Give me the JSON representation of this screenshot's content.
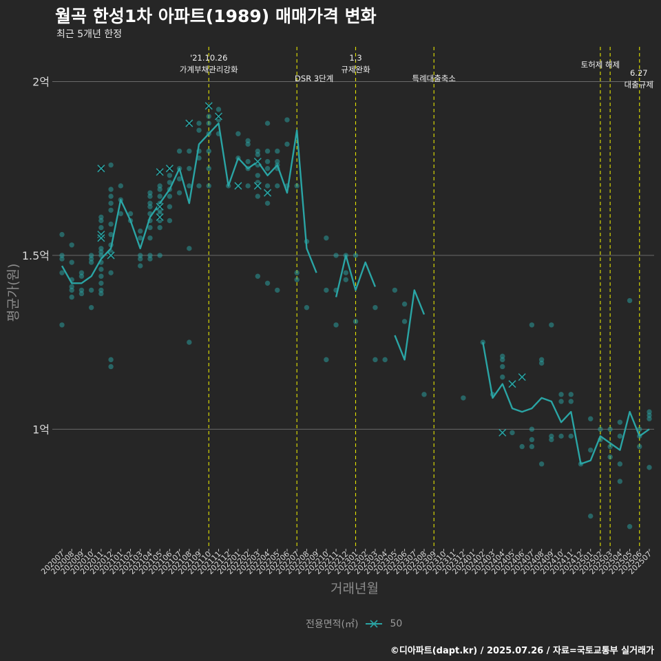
{
  "header": {
    "title": "월곡 한성1차 아파트(1989) 매매가격 변화",
    "subtitle": "최근 5개년 한정"
  },
  "caption": "©디아파트(dapt.kr) / 2025.07.26 / 자료=국토교통부 실거래가",
  "legend": {
    "title": "전용면적(㎡)",
    "item": "50"
  },
  "colors": {
    "background": "#262626",
    "series": "#2aa5a5",
    "event_line": "#e6e600",
    "grid": "#6a6a6a"
  },
  "chart_data": {
    "type": "line",
    "xlabel": "거래년월",
    "ylabel": "평균가(원)",
    "ylim": [
      0.66,
      2.1
    ],
    "yticks": [
      {
        "value": 1.0,
        "label": "1억"
      },
      {
        "value": 1.5,
        "label": "1.5억"
      },
      {
        "value": 2.0,
        "label": "2억"
      }
    ],
    "categories": [
      "202007",
      "202008",
      "202009",
      "202010",
      "202011",
      "202012",
      "202101",
      "202102",
      "202103",
      "202104",
      "202105",
      "202106",
      "202107",
      "202108",
      "202109",
      "202110",
      "202111",
      "202112",
      "202201",
      "202202",
      "202203",
      "202204",
      "202205",
      "202206",
      "202207",
      "202208",
      "202209",
      "202210",
      "202211",
      "202212",
      "202301",
      "202302",
      "202303",
      "202304",
      "202305",
      "202306",
      "202307",
      "202308",
      "202309",
      "202310",
      "202311",
      "202312",
      "202401",
      "202402",
      "202403",
      "202404",
      "202405",
      "202406",
      "202407",
      "202408",
      "202409",
      "202410",
      "202411",
      "202412",
      "202501",
      "202502",
      "202503",
      "202504",
      "202505",
      "202506",
      "202507"
    ],
    "series": [
      {
        "name": "50",
        "mean": [
          1.47,
          1.42,
          1.42,
          1.44,
          1.49,
          1.52,
          1.66,
          1.6,
          1.52,
          1.61,
          1.65,
          1.69,
          1.75,
          1.65,
          1.82,
          1.85,
          1.88,
          1.7,
          1.78,
          1.75,
          1.77,
          1.73,
          1.76,
          1.68,
          1.86,
          1.52,
          1.45,
          null,
          1.38,
          1.5,
          1.4,
          1.48,
          1.41,
          null,
          1.27,
          1.2,
          1.4,
          1.33,
          null,
          null,
          null,
          null,
          null,
          1.25,
          1.09,
          1.13,
          1.06,
          1.05,
          1.06,
          1.09,
          1.08,
          1.02,
          1.05,
          0.9,
          0.91,
          0.98,
          0.96,
          0.94,
          1.05,
          0.98,
          1.0
        ],
        "points": [
          [
            0,
            1.56
          ],
          [
            0,
            1.5
          ],
          [
            0,
            1.49
          ],
          [
            0,
            1.45
          ],
          [
            0,
            1.3
          ],
          [
            1,
            1.53
          ],
          [
            1,
            1.48
          ],
          [
            1,
            1.43
          ],
          [
            1,
            1.41
          ],
          [
            1,
            1.4
          ],
          [
            1,
            1.38
          ],
          [
            2,
            1.45
          ],
          [
            2,
            1.44
          ],
          [
            2,
            1.4
          ],
          [
            2,
            1.39
          ],
          [
            3,
            1.5
          ],
          [
            3,
            1.49
          ],
          [
            3,
            1.48
          ],
          [
            3,
            1.4
          ],
          [
            3,
            1.35
          ],
          [
            4,
            1.61
          ],
          [
            4,
            1.6
          ],
          [
            4,
            1.58
          ],
          [
            4,
            1.56
          ],
          [
            4,
            1.55
          ],
          [
            4,
            1.52
          ],
          [
            4,
            1.51
          ],
          [
            4,
            1.5
          ],
          [
            4,
            1.48
          ],
          [
            4,
            1.46
          ],
          [
            4,
            1.44
          ],
          [
            4,
            1.42
          ],
          [
            4,
            1.4
          ],
          [
            4,
            1.39
          ],
          [
            5,
            1.76
          ],
          [
            5,
            1.69
          ],
          [
            5,
            1.67
          ],
          [
            5,
            1.65
          ],
          [
            5,
            1.63
          ],
          [
            5,
            1.59
          ],
          [
            5,
            1.56
          ],
          [
            5,
            1.53
          ],
          [
            5,
            1.51
          ],
          [
            5,
            1.5
          ],
          [
            5,
            1.45
          ],
          [
            5,
            1.2
          ],
          [
            5,
            1.18
          ],
          [
            6,
            1.7
          ],
          [
            6,
            1.66
          ],
          [
            6,
            1.62
          ],
          [
            7,
            1.62
          ],
          [
            7,
            1.6
          ],
          [
            8,
            1.57
          ],
          [
            8,
            1.55
          ],
          [
            8,
            1.5
          ],
          [
            8,
            1.49
          ],
          [
            8,
            1.47
          ],
          [
            9,
            1.68
          ],
          [
            9,
            1.67
          ],
          [
            9,
            1.65
          ],
          [
            9,
            1.64
          ],
          [
            9,
            1.62
          ],
          [
            9,
            1.6
          ],
          [
            9,
            1.58
          ],
          [
            9,
            1.55
          ],
          [
            9,
            1.5
          ],
          [
            9,
            1.49
          ],
          [
            10,
            1.7
          ],
          [
            10,
            1.69
          ],
          [
            10,
            1.67
          ],
          [
            10,
            1.65
          ],
          [
            10,
            1.63
          ],
          [
            10,
            1.62
          ],
          [
            10,
            1.6
          ],
          [
            10,
            1.58
          ],
          [
            10,
            1.5
          ],
          [
            11,
            1.73
          ],
          [
            11,
            1.71
          ],
          [
            11,
            1.69
          ],
          [
            11,
            1.67
          ],
          [
            11,
            1.64
          ],
          [
            11,
            1.6
          ],
          [
            12,
            1.8
          ],
          [
            12,
            1.75
          ],
          [
            12,
            1.72
          ],
          [
            12,
            1.68
          ],
          [
            13,
            1.8
          ],
          [
            13,
            1.75
          ],
          [
            13,
            1.7
          ],
          [
            13,
            1.52
          ],
          [
            13,
            1.25
          ],
          [
            14,
            1.88
          ],
          [
            14,
            1.86
          ],
          [
            14,
            1.8
          ],
          [
            14,
            1.78
          ],
          [
            14,
            1.7
          ],
          [
            15,
            1.9
          ],
          [
            15,
            1.88
          ],
          [
            15,
            1.85
          ],
          [
            15,
            1.8
          ],
          [
            15,
            1.75
          ],
          [
            15,
            1.7
          ],
          [
            16,
            1.92
          ],
          [
            16,
            1.89
          ],
          [
            16,
            1.85
          ],
          [
            17,
            1.7
          ],
          [
            18,
            1.85
          ],
          [
            18,
            1.78
          ],
          [
            18,
            1.7
          ],
          [
            19,
            1.83
          ],
          [
            19,
            1.82
          ],
          [
            19,
            1.77
          ],
          [
            19,
            1.75
          ],
          [
            19,
            1.7
          ],
          [
            20,
            1.8
          ],
          [
            20,
            1.79
          ],
          [
            20,
            1.77
          ],
          [
            20,
            1.76
          ],
          [
            20,
            1.73
          ],
          [
            20,
            1.71
          ],
          [
            20,
            1.7
          ],
          [
            20,
            1.67
          ],
          [
            20,
            1.44
          ],
          [
            21,
            1.88
          ],
          [
            21,
            1.8
          ],
          [
            21,
            1.77
          ],
          [
            21,
            1.75
          ],
          [
            21,
            1.7
          ],
          [
            21,
            1.68
          ],
          [
            21,
            1.65
          ],
          [
            21,
            1.42
          ],
          [
            22,
            1.8
          ],
          [
            22,
            1.77
          ],
          [
            22,
            1.76
          ],
          [
            22,
            1.75
          ],
          [
            22,
            1.7
          ],
          [
            22,
            1.4
          ],
          [
            23,
            1.89
          ],
          [
            23,
            1.82
          ],
          [
            23,
            1.7
          ],
          [
            24,
            1.7
          ],
          [
            24,
            1.45
          ],
          [
            24,
            1.43
          ],
          [
            25,
            1.54
          ],
          [
            25,
            1.35
          ],
          [
            27,
            1.55
          ],
          [
            27,
            1.4
          ],
          [
            27,
            1.2
          ],
          [
            28,
            1.5
          ],
          [
            28,
            1.4
          ],
          [
            28,
            1.3
          ],
          [
            29,
            1.5
          ],
          [
            29,
            1.45
          ],
          [
            29,
            1.43
          ],
          [
            30,
            1.5
          ],
          [
            30,
            1.31
          ],
          [
            32,
            1.35
          ],
          [
            32,
            1.2
          ],
          [
            33,
            1.2
          ],
          [
            34,
            1.4
          ],
          [
            35,
            1.36
          ],
          [
            35,
            1.31
          ],
          [
            37,
            1.1
          ],
          [
            41,
            1.09
          ],
          [
            43,
            1.25
          ],
          [
            44,
            1.1
          ],
          [
            45,
            1.21
          ],
          [
            45,
            1.2
          ],
          [
            45,
            1.18
          ],
          [
            45,
            1.15
          ],
          [
            45,
            0.99
          ],
          [
            46,
            1.13
          ],
          [
            46,
            0.99
          ],
          [
            47,
            1.15
          ],
          [
            47,
            0.95
          ],
          [
            48,
            1.3
          ],
          [
            48,
            1.0
          ],
          [
            48,
            0.97
          ],
          [
            48,
            0.95
          ],
          [
            49,
            1.2
          ],
          [
            49,
            1.19
          ],
          [
            49,
            0.9
          ],
          [
            50,
            1.3
          ],
          [
            50,
            0.98
          ],
          [
            50,
            0.97
          ],
          [
            51,
            1.1
          ],
          [
            51,
            1.08
          ],
          [
            51,
            0.98
          ],
          [
            52,
            1.1
          ],
          [
            52,
            1.08
          ],
          [
            52,
            0.98
          ],
          [
            53,
            0.9
          ],
          [
            54,
            1.03
          ],
          [
            54,
            0.94
          ],
          [
            54,
            0.75
          ],
          [
            55,
            1.0
          ],
          [
            55,
            0.97
          ],
          [
            56,
            1.0
          ],
          [
            56,
            0.95
          ],
          [
            56,
            0.92
          ],
          [
            57,
            1.02
          ],
          [
            57,
            0.98
          ],
          [
            57,
            0.9
          ],
          [
            57,
            0.85
          ],
          [
            58,
            1.37
          ],
          [
            58,
            0.72
          ],
          [
            59,
            1.0
          ],
          [
            59,
            0.98
          ],
          [
            59,
            0.95
          ],
          [
            60,
            1.05
          ],
          [
            60,
            1.04
          ],
          [
            60,
            1.03
          ],
          [
            60,
            0.89
          ]
        ],
        "highlights": [
          [
            4,
            1.56
          ],
          [
            4,
            1.55
          ],
          [
            5,
            1.5
          ],
          [
            4,
            1.75
          ],
          [
            10,
            1.74
          ],
          [
            10,
            1.64
          ],
          [
            10,
            1.61
          ],
          [
            11,
            1.75
          ],
          [
            13,
            1.88
          ],
          [
            15,
            1.93
          ],
          [
            16,
            1.9
          ],
          [
            18,
            1.7
          ],
          [
            20,
            1.77
          ],
          [
            20,
            1.7
          ],
          [
            21,
            1.68
          ],
          [
            45,
            0.99
          ],
          [
            46,
            1.13
          ],
          [
            47,
            1.15
          ]
        ]
      }
    ],
    "events": [
      {
        "x": 15.0,
        "lines": [
          "'21.10.26",
          "가계부채관리강화"
        ]
      },
      {
        "x": 24.0,
        "lines": [
          "DSR 3단계"
        ]
      },
      {
        "x": 30.0,
        "lines": [
          "1.3",
          "규제완화"
        ]
      },
      {
        "x": 38.0,
        "lines": [
          "특례대출축소"
        ]
      },
      {
        "x": 55.0,
        "lines": [
          "토허제 해제"
        ]
      },
      {
        "x": 56.0,
        "lines": []
      },
      {
        "x": 59.0,
        "lines": [
          "6.27",
          "대출규제"
        ]
      }
    ]
  }
}
